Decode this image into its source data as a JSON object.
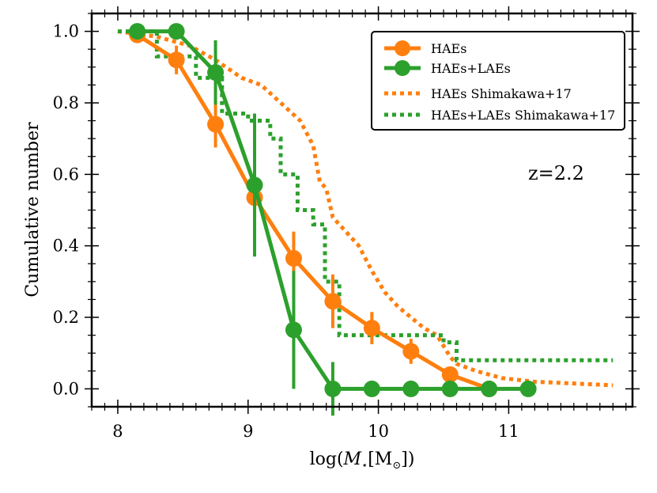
{
  "chart_data": {
    "type": "line",
    "xlabel_parts": [
      "log(",
      "M",
      "⋆",
      "[M",
      "⊙",
      "])"
    ],
    "ylabel": "Cumulative number",
    "xlim": [
      7.8,
      11.95
    ],
    "ylim": [
      -0.05,
      1.05
    ],
    "xticks": [
      8,
      9,
      10,
      11
    ],
    "yticks": [
      0.0,
      0.2,
      0.4,
      0.6,
      0.8,
      1.0
    ],
    "xtick_labels": [
      "8",
      "9",
      "10",
      "11"
    ],
    "ytick_labels": [
      "0.0",
      "0.2",
      "0.4",
      "0.6",
      "0.8",
      "1.0"
    ],
    "annotation": "z=2.2",
    "grid": false,
    "legend_position": "top-right",
    "colors": {
      "orange": "#ff7f0e",
      "green": "#2ca02c"
    },
    "series": [
      {
        "name": "HAEs",
        "style": "line-marker",
        "color": "#ff7f0e",
        "x": [
          8.15,
          8.45,
          8.75,
          9.05,
          9.35,
          9.65,
          9.95,
          10.25,
          10.55,
          10.85
        ],
        "y": [
          0.99,
          0.92,
          0.74,
          0.535,
          0.365,
          0.245,
          0.17,
          0.105,
          0.04,
          0.0
        ],
        "err": [
          0.0,
          0.04,
          0.065,
          0.075,
          0.075,
          0.075,
          0.045,
          0.035,
          0.02,
          0.0
        ]
      },
      {
        "name": "HAEs+LAEs",
        "style": "line-marker",
        "color": "#2ca02c",
        "x": [
          8.15,
          8.45,
          8.75,
          9.05,
          9.35,
          9.65,
          9.95,
          10.25,
          10.55,
          10.85,
          11.15
        ],
        "y": [
          1.0,
          1.0,
          0.885,
          0.57,
          0.165,
          0.0,
          0.0,
          0.0,
          0.0,
          0.0,
          0.0
        ],
        "err": [
          0.0,
          0.0,
          0.09,
          0.2,
          0.165,
          0.075,
          0.0,
          0.0,
          0.0,
          0.0,
          0.0
        ]
      },
      {
        "name": "HAEs Shimakawa+17",
        "style": "dotted",
        "color": "#ff7f0e",
        "x": [
          8.0,
          8.3,
          8.55,
          8.75,
          8.95,
          9.1,
          9.25,
          9.4,
          9.5,
          9.55,
          9.6,
          9.65,
          9.75,
          9.85,
          9.95,
          10.05,
          10.15,
          10.25,
          10.35,
          10.45,
          10.55,
          10.6,
          10.75,
          10.95,
          11.2,
          11.8
        ],
        "y": [
          1.0,
          0.985,
          0.96,
          0.92,
          0.87,
          0.85,
          0.8,
          0.75,
          0.68,
          0.58,
          0.56,
          0.48,
          0.44,
          0.4,
          0.33,
          0.27,
          0.23,
          0.2,
          0.17,
          0.15,
          0.09,
          0.07,
          0.05,
          0.03,
          0.02,
          0.01
        ]
      },
      {
        "name": "HAEs+LAEs Shimakawa+17",
        "style": "dotted",
        "color": "#2ca02c",
        "x": [
          8.0,
          8.3,
          8.3,
          8.6,
          8.6,
          8.8,
          8.8,
          9.0,
          9.0,
          9.17,
          9.17,
          9.25,
          9.25,
          9.38,
          9.38,
          9.5,
          9.5,
          9.59,
          9.59,
          9.7,
          9.7,
          10.5,
          10.5,
          10.6,
          10.6,
          11.8
        ],
        "y": [
          1.0,
          1.0,
          0.93,
          0.93,
          0.87,
          0.87,
          0.77,
          0.77,
          0.75,
          0.75,
          0.7,
          0.7,
          0.6,
          0.6,
          0.5,
          0.5,
          0.46,
          0.46,
          0.3,
          0.3,
          0.15,
          0.15,
          0.13,
          0.13,
          0.08,
          0.08
        ]
      }
    ]
  }
}
